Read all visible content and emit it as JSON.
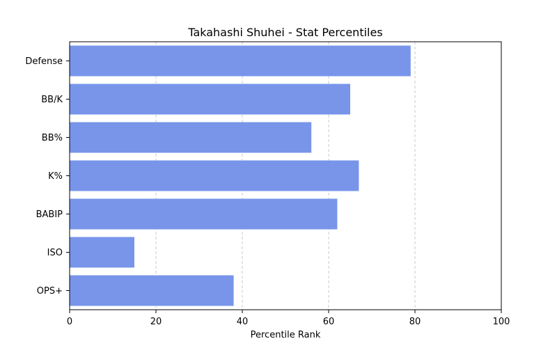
{
  "chart_data": {
    "type": "bar",
    "orientation": "horizontal",
    "title": "Takahashi Shuhei - Stat Percentiles",
    "xlabel": "Percentile Rank",
    "ylabel": "",
    "xlim": [
      0,
      100
    ],
    "xticks": [
      "0",
      "20",
      "40",
      "60",
      "80",
      "100"
    ],
    "categories": [
      "Defense",
      "BB/K",
      "BB%",
      "K%",
      "BABIP",
      "ISO",
      "OPS+"
    ],
    "values": [
      79,
      65,
      56,
      67,
      62,
      15,
      38
    ],
    "bar_color": "#7895ea",
    "grid": "x-dashed"
  }
}
